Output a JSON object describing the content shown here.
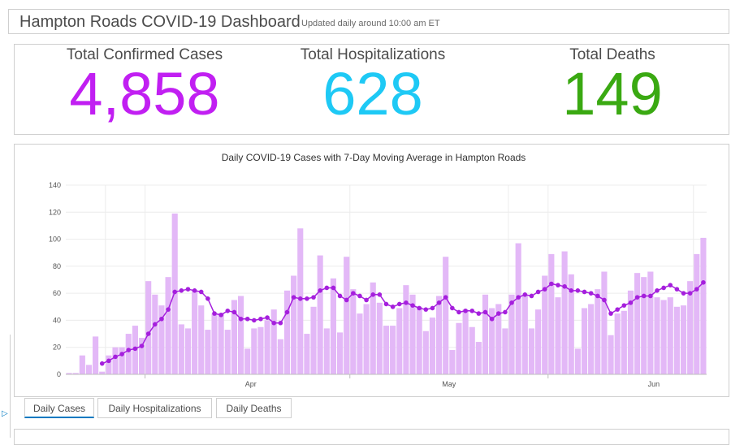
{
  "header": {
    "title": "Hampton Roads COVID-19 Dashboard",
    "subtitle": "Updated daily around 10:00 am ET"
  },
  "kpis": [
    {
      "label": "Total Confirmed Cases",
      "value": "4,858",
      "color": "#c11ff2"
    },
    {
      "label": "Total Hospitalizations",
      "value": "628",
      "color": "#1ec9f5"
    },
    {
      "label": "Total Deaths",
      "value": "149",
      "color": "#3aa912"
    }
  ],
  "tabs": [
    {
      "label": "Daily Cases",
      "active": true
    },
    {
      "label": "Daily Hospitalizations",
      "active": false
    },
    {
      "label": "Daily Deaths",
      "active": false
    }
  ],
  "chart_data": {
    "type": "bar",
    "title": "Daily COVID-19 Cases with 7-Day Moving Average in Hampton Roads",
    "xlabel": "",
    "ylabel": "",
    "ylim": [
      0,
      140
    ],
    "yticks": [
      0,
      20,
      40,
      60,
      80,
      100,
      120,
      140
    ],
    "xtick_labels": [
      {
        "label": "Apr",
        "index": 28
      },
      {
        "label": "May",
        "index": 58
      },
      {
        "label": "Jun",
        "index": 89
      }
    ],
    "grid": true,
    "colors": {
      "bars": "#e3b8f7",
      "line": "#a51fdd"
    },
    "series": [
      {
        "type": "bar",
        "values": [
          1,
          1,
          14,
          7,
          28,
          2,
          14,
          20,
          20,
          30,
          36,
          27,
          69,
          59,
          51,
          72,
          119,
          37,
          34,
          62,
          51,
          33,
          45,
          45,
          33,
          55,
          58,
          19,
          34,
          35,
          40,
          48,
          26,
          62,
          73,
          108,
          30,
          50,
          88,
          34,
          71,
          31,
          87,
          63,
          45,
          52,
          68,
          53,
          36,
          36,
          49,
          66,
          59,
          50,
          32,
          42,
          58,
          87,
          18,
          38,
          48,
          35,
          24,
          59,
          49,
          52,
          34,
          59,
          97,
          59,
          34,
          48,
          73,
          89,
          57,
          91,
          74,
          19,
          49,
          52,
          63,
          76,
          29,
          45,
          47,
          62,
          75,
          72,
          76,
          57,
          55,
          57,
          50,
          51,
          69,
          89,
          101
        ]
      },
      {
        "type": "line",
        "values": [
          null,
          null,
          null,
          null,
          null,
          8,
          10,
          13,
          15,
          18,
          19,
          21,
          30,
          37,
          41,
          48,
          61,
          62,
          63,
          62,
          61,
          56,
          45,
          44,
          47,
          46,
          41,
          41,
          40,
          41,
          42,
          38,
          38,
          46,
          57,
          56,
          56,
          57,
          62,
          64,
          64,
          58,
          55,
          60,
          58,
          55,
          59,
          59,
          52,
          50,
          52,
          53,
          51,
          49,
          48,
          49,
          53,
          57,
          49,
          46,
          47,
          47,
          45,
          46,
          41,
          45,
          46,
          53,
          57,
          59,
          58,
          61,
          63,
          67,
          66,
          65,
          62,
          62,
          61,
          60,
          58,
          55,
          45,
          48,
          51,
          53,
          57,
          58,
          58,
          62,
          64,
          66,
          63,
          60,
          60,
          63,
          68
        ]
      }
    ]
  }
}
